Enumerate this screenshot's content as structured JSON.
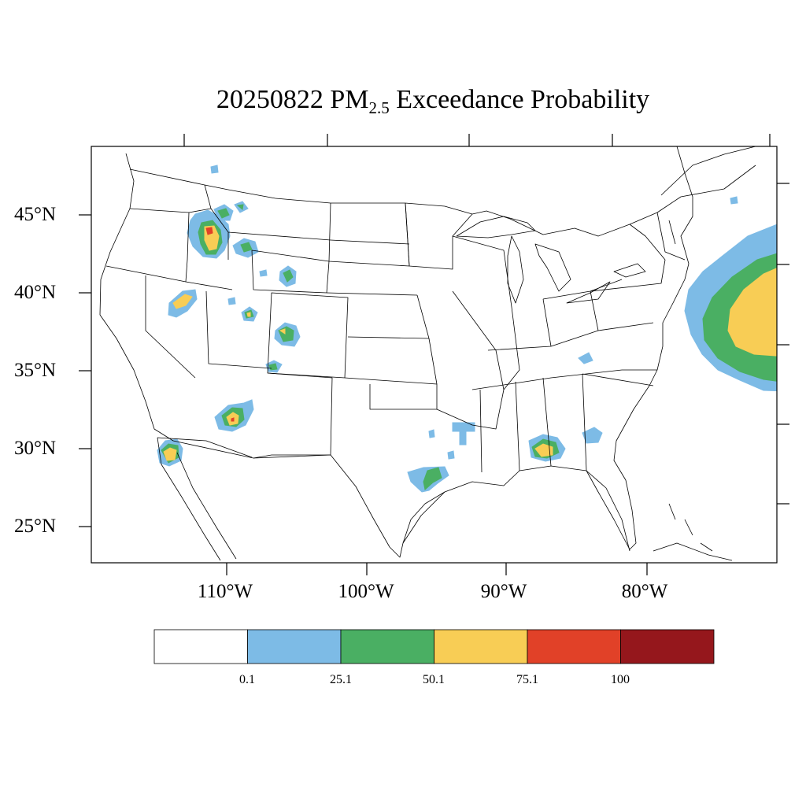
{
  "title": {
    "prefix": "20250822 PM",
    "subscript": "2.5",
    "suffix": " Exceedance Probability"
  },
  "axes": {
    "lat_labels": [
      "45°N",
      "40°N",
      "35°N",
      "30°N",
      "25°N"
    ],
    "lon_labels": [
      "110°W",
      "100°W",
      "90°W",
      "80°W"
    ]
  },
  "colorbar": {
    "colors": [
      "#ffffff",
      "#7dbbe6",
      "#4aaf63",
      "#f8cd55",
      "#e14128",
      "#95171c"
    ],
    "tick_labels": [
      "0.1",
      "25.1",
      "50.1",
      "75.1",
      "100"
    ]
  },
  "map_colors": {
    "blue": "#7dbbe6",
    "green": "#4aaf63",
    "yellow": "#f8cd55",
    "red": "#e14128",
    "line": "#000000"
  }
}
